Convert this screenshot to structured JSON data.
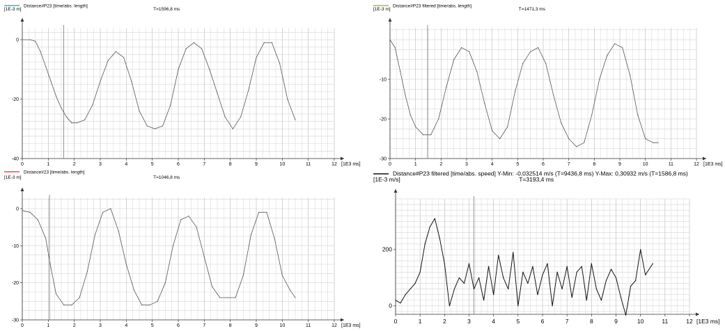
{
  "chart_data": [
    {
      "type": "line",
      "legend": "Distance#P23 [time/abs. length]",
      "legend_color": "#29b6d8",
      "unit_y": "[1E-3 m]",
      "unit_x": "[1E3 ms]",
      "cursor_label": "T=1596,8 ms",
      "cursor_x": 1.5968,
      "xlim": [
        0,
        12
      ],
      "ylim": [
        -40,
        4
      ],
      "x_ticks": [
        0,
        1,
        2,
        3,
        4,
        5,
        6,
        7,
        8,
        9,
        10,
        11,
        12
      ],
      "y_ticks": [
        0,
        -20,
        -40
      ],
      "series": [
        {
          "x": [
            0,
            0.3,
            0.5,
            0.7,
            0.9,
            1.1,
            1.3,
            1.5,
            1.7,
            1.9,
            2.1,
            2.4,
            2.7,
            3.0,
            3.3,
            3.6,
            3.9,
            4.2,
            4.5,
            4.8,
            5.1,
            5.4,
            5.7,
            6.0,
            6.3,
            6.6,
            6.9,
            7.2,
            7.5,
            7.8,
            8.1,
            8.4,
            8.7,
            9.0,
            9.3,
            9.6,
            9.9,
            10.2,
            10.5
          ],
          "y": [
            0,
            0,
            -0.5,
            -4,
            -9,
            -14,
            -19,
            -23,
            -26,
            -28,
            -28,
            -27,
            -22,
            -14,
            -7,
            -4,
            -6,
            -14,
            -24,
            -29,
            -30,
            -29,
            -22,
            -10,
            -3,
            -1,
            -3,
            -10,
            -18,
            -26,
            -30,
            -26,
            -17,
            -6,
            -1,
            -1,
            -8,
            -20,
            -27
          ]
        }
      ]
    },
    {
      "type": "line",
      "legend": "Distance#P23 filtered [time/abs. length]",
      "legend_color": "#b8b43a",
      "unit_y": "[1E-3 m]",
      "unit_x": "[1E3 ms]",
      "cursor_label": "T=1471,3 ms",
      "cursor_x": 1.4713,
      "xlim": [
        0,
        12
      ],
      "ylim": [
        -30,
        3
      ],
      "x_ticks": [
        0,
        1,
        2,
        3,
        4,
        5,
        6,
        7,
        8,
        9,
        10,
        11,
        12
      ],
      "y_ticks": [
        -10,
        -20,
        -30
      ],
      "series": [
        {
          "x": [
            0,
            0.2,
            0.4,
            0.6,
            0.8,
            1.0,
            1.3,
            1.6,
            1.9,
            2.2,
            2.5,
            2.8,
            3.1,
            3.4,
            3.7,
            4.0,
            4.3,
            4.6,
            4.9,
            5.2,
            5.5,
            5.8,
            6.1,
            6.4,
            6.7,
            7.0,
            7.3,
            7.6,
            7.9,
            8.2,
            8.5,
            8.8,
            9.1,
            9.4,
            9.7,
            10.0,
            10.3,
            10.5
          ],
          "y": [
            0,
            -2,
            -8,
            -14,
            -19,
            -22,
            -24,
            -24,
            -20,
            -12,
            -5,
            -2,
            -3,
            -8,
            -16,
            -23,
            -25,
            -22,
            -13,
            -6,
            -3,
            -2,
            -6,
            -14,
            -21,
            -25,
            -27,
            -26,
            -19,
            -10,
            -4,
            -1,
            -2,
            -9,
            -19,
            -25,
            -26,
            -26
          ]
        }
      ]
    },
    {
      "type": "line",
      "legend": "Distance#23 [time/abs. length]",
      "legend_color": "#e05050",
      "unit_y": "[1E-3 m]",
      "unit_x": "[1E3 ms]",
      "cursor_label": "T=1046,8 ms",
      "cursor_x": 1.0468,
      "xlim": [
        0,
        12
      ],
      "ylim": [
        -30,
        3
      ],
      "x_ticks": [
        0,
        1,
        2,
        3,
        4,
        5,
        6,
        7,
        8,
        9,
        10,
        11,
        12
      ],
      "y_ticks": [
        0,
        -10,
        -20,
        -30
      ],
      "series": [
        {
          "x": [
            0,
            0.3,
            0.6,
            0.9,
            1.1,
            1.3,
            1.6,
            1.9,
            2.2,
            2.5,
            2.8,
            3.1,
            3.4,
            3.7,
            4.0,
            4.3,
            4.6,
            4.9,
            5.2,
            5.5,
            5.8,
            6.1,
            6.4,
            6.7,
            7.0,
            7.3,
            7.6,
            7.9,
            8.2,
            8.5,
            8.8,
            9.1,
            9.4,
            9.7,
            10.0,
            10.3,
            10.5
          ],
          "y": [
            -0.5,
            -1,
            -3,
            -8,
            -16,
            -23,
            -26,
            -26,
            -24,
            -17,
            -7,
            -1,
            0,
            -6,
            -15,
            -22,
            -26,
            -26,
            -25,
            -20,
            -10,
            -3,
            -2,
            -5,
            -13,
            -21,
            -24,
            -24,
            -24,
            -18,
            -7,
            -1,
            -1,
            -8,
            -18,
            -22,
            -24
          ]
        }
      ]
    },
    {
      "type": "line",
      "legend": "Distance#P23 filtered [time/abs. speed] Y-Min: -0,032514 m/s (T=9436,8 ms) Y-Max: 0,30932 m/s (T=1586,8 ms)",
      "legend_color": "#111111",
      "unit_y": "[1E-3 m/s]",
      "unit_x": "[1E3 ms]",
      "cursor_label": "T=3193,4 ms",
      "cursor_x": 3.1934,
      "xlim": [
        0,
        12
      ],
      "ylim": [
        -30,
        380
      ],
      "x_ticks": [
        0,
        1,
        2,
        3,
        4,
        5,
        6,
        7,
        8,
        9,
        10,
        11,
        12
      ],
      "y_ticks": [
        0,
        200
      ],
      "series": [
        {
          "x": [
            0,
            0.2,
            0.4,
            0.6,
            0.8,
            1.0,
            1.2,
            1.4,
            1.6,
            1.8,
            2.0,
            2.2,
            2.4,
            2.6,
            2.8,
            3.0,
            3.2,
            3.4,
            3.6,
            3.8,
            4.0,
            4.2,
            4.4,
            4.6,
            4.8,
            5.0,
            5.2,
            5.4,
            5.6,
            5.8,
            6.0,
            6.2,
            6.4,
            6.6,
            6.8,
            7.0,
            7.2,
            7.4,
            7.6,
            7.8,
            8.0,
            8.2,
            8.4,
            8.6,
            8.8,
            9.0,
            9.2,
            9.4,
            9.6,
            9.8,
            10.0,
            10.2,
            10.5
          ],
          "y": [
            20,
            10,
            40,
            60,
            80,
            120,
            220,
            280,
            310,
            240,
            150,
            0,
            60,
            100,
            80,
            150,
            60,
            100,
            20,
            140,
            40,
            180,
            100,
            60,
            190,
            0,
            120,
            80,
            140,
            40,
            110,
            150,
            0,
            120,
            60,
            140,
            30,
            120,
            140,
            20,
            150,
            60,
            20,
            90,
            130,
            100,
            30,
            -33,
            70,
            90,
            200,
            110,
            150
          ]
        }
      ]
    }
  ]
}
